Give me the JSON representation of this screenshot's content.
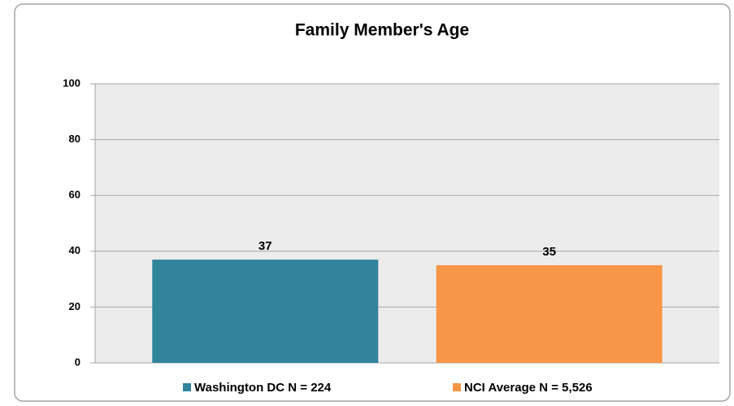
{
  "chart_data": {
    "type": "bar",
    "title": "Family Member's Age",
    "categories": [
      null
    ],
    "series": [
      {
        "name": "Washington DC N = 224",
        "color": "#31849b",
        "values": [
          37
        ]
      },
      {
        "name": "NCI Average N = 5,526",
        "color": "#f79646",
        "values": [
          35
        ]
      }
    ],
    "ylim": [
      0,
      100
    ],
    "yticks": [
      0,
      20,
      40,
      60,
      80,
      100
    ],
    "grid": true,
    "legend": "bottom"
  }
}
